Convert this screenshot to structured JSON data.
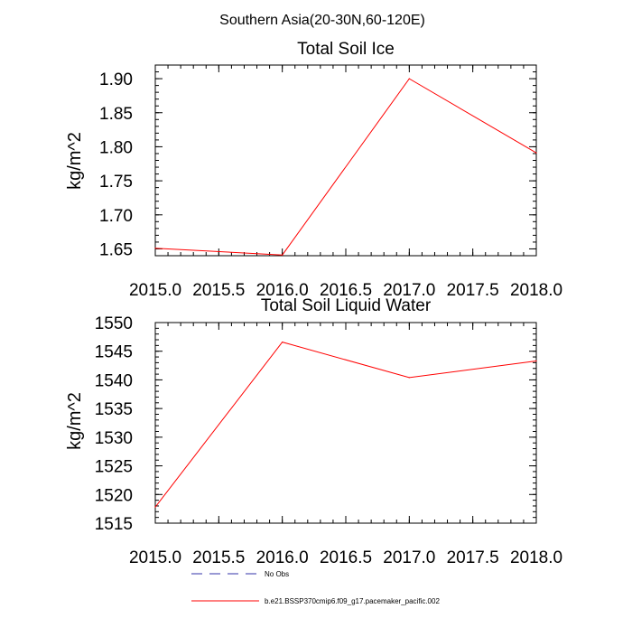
{
  "suptitle": "Southern Asia(20-30N,60-120E)",
  "chart_data": [
    {
      "type": "line",
      "title": "Total Soil Ice",
      "ylabel": "kg/m^2",
      "xlabel": "",
      "xlim": [
        2015.0,
        2018.0
      ],
      "ylim": [
        1.64,
        1.92
      ],
      "x_ticks": [
        2015.0,
        2015.5,
        2016.0,
        2016.5,
        2017.0,
        2017.5,
        2018.0
      ],
      "x_tick_labels": [
        "2015.0",
        "2015.5",
        "2016.0",
        "2016.5",
        "2017.0",
        "2017.5",
        "2018.0"
      ],
      "y_ticks": [
        1.65,
        1.7,
        1.75,
        1.8,
        1.85,
        1.9
      ],
      "y_tick_labels": [
        "1.65",
        "1.70",
        "1.75",
        "1.80",
        "1.85",
        "1.90"
      ],
      "series": [
        {
          "name": "b.e21.BSSP370cmip6.f09_g17.pacemaker_pacific.002",
          "color": "#ff0000",
          "x": [
            2015.0,
            2016.0,
            2017.0,
            2018.0
          ],
          "y": [
            1.651,
            1.641,
            1.9,
            1.791
          ]
        }
      ]
    },
    {
      "type": "line",
      "title": "Total Soil Liquid Water",
      "ylabel": "kg/m^2",
      "xlabel": "",
      "xlim": [
        2015.0,
        2018.0
      ],
      "ylim": [
        1515,
        1550
      ],
      "x_ticks": [
        2015.0,
        2015.5,
        2016.0,
        2016.5,
        2017.0,
        2017.5,
        2018.0
      ],
      "x_tick_labels": [
        "2015.0",
        "2015.5",
        "2016.0",
        "2016.5",
        "2017.0",
        "2017.5",
        "2018.0"
      ],
      "y_ticks": [
        1515,
        1520,
        1525,
        1530,
        1535,
        1540,
        1545,
        1550
      ],
      "y_tick_labels": [
        "1515",
        "1520",
        "1525",
        "1530",
        "1535",
        "1540",
        "1545",
        "1550"
      ],
      "series": [
        {
          "name": "b.e21.BSSP370cmip6.f09_g17.pacemaker_pacific.002",
          "color": "#ff0000",
          "x": [
            2015.0,
            2016.0,
            2017.0,
            2018.0
          ],
          "y": [
            1517.8,
            1546.6,
            1540.4,
            1543.3
          ]
        }
      ]
    }
  ],
  "legend": [
    {
      "label": "No Obs",
      "color": "#3333aa",
      "style": "dashed"
    },
    {
      "label": "b.e21.BSSP370cmip6.f09_g17.pacemaker_pacific.002",
      "color": "#ff0000",
      "style": "solid"
    }
  ]
}
